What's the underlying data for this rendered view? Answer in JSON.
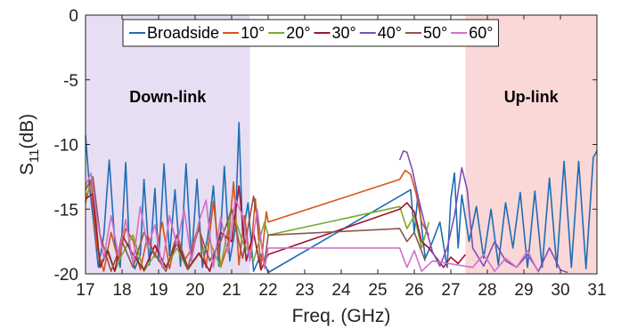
{
  "chart_data": {
    "type": "line",
    "title": "",
    "xlabel": "Freq. (GHz)",
    "ylabel_main": "S",
    "ylabel_sub": "11",
    "ylabel_unit": "(dB)",
    "xlim": [
      17,
      31
    ],
    "ylim": [
      -20,
      0
    ],
    "xticks": [
      17,
      18,
      19,
      20,
      21,
      22,
      23,
      24,
      25,
      26,
      27,
      28,
      29,
      30,
      31
    ],
    "yticks": [
      0,
      -5,
      -10,
      -15,
      -20
    ],
    "grid": false,
    "legend_position": "top",
    "bands": [
      {
        "label": "Down-link",
        "x_start": 17,
        "x_end": 21.5,
        "color": "#e8def3"
      },
      {
        "label": "Up-link",
        "x_start": 27.4,
        "x_end": 31,
        "color": "#fbd8d8"
      }
    ],
    "series": [
      {
        "name": "Broadside",
        "color": "#1f6db3",
        "x": [
          17.0,
          17.1,
          17.2,
          17.35,
          17.5,
          17.65,
          17.8,
          17.95,
          18.1,
          18.2,
          18.35,
          18.5,
          18.6,
          18.75,
          18.9,
          19.0,
          19.15,
          19.3,
          19.45,
          19.6,
          19.75,
          19.9,
          20.05,
          20.2,
          20.35,
          20.5,
          20.65,
          20.8,
          20.95,
          21.1,
          21.2,
          21.3,
          21.45,
          21.6,
          21.8,
          22.0,
          25.9,
          26.0,
          26.1,
          26.3,
          26.5,
          26.7,
          26.9,
          27.0,
          27.1,
          27.2,
          27.3,
          27.5,
          27.7,
          27.9,
          28.1,
          28.3,
          28.5,
          28.7,
          28.9,
          29.1,
          29.3,
          29.5,
          29.7,
          29.9,
          30.1,
          30.3,
          30.5,
          30.7,
          30.9,
          31.0
        ],
        "y": [
          -9.3,
          -13.0,
          -15.5,
          -19.5,
          -17.0,
          -11.2,
          -17.5,
          -19.5,
          -11.4,
          -18.0,
          -19.6,
          -18.5,
          -12.7,
          -19.3,
          -13.4,
          -19.0,
          -11.5,
          -18.6,
          -13.5,
          -19.4,
          -11.5,
          -19.0,
          -12.7,
          -19.5,
          -17.0,
          -13.2,
          -19.4,
          -11.7,
          -19.0,
          -16.5,
          -8.3,
          -17.0,
          -14.5,
          -19.8,
          -18.5,
          -19.9,
          -13.5,
          -16.8,
          -13.9,
          -18.8,
          -17.5,
          -16.0,
          -19.5,
          -14.2,
          -12.2,
          -18.0,
          -13.9,
          -17.5,
          -14.8,
          -18.8,
          -15.0,
          -19.3,
          -14.5,
          -18.0,
          -13.7,
          -19.5,
          -13.6,
          -19.5,
          -12.6,
          -19.5,
          -11.3,
          -19.5,
          -11.3,
          -19.6,
          -11.0,
          -10.5
        ]
      },
      {
        "name": "10°",
        "color": "#d95319",
        "x": [
          17.0,
          17.15,
          17.3,
          17.5,
          17.7,
          17.9,
          18.1,
          18.3,
          18.5,
          18.7,
          18.9,
          19.1,
          19.3,
          19.5,
          19.7,
          19.9,
          20.1,
          20.3,
          20.5,
          20.7,
          20.9,
          21.05,
          21.2,
          21.35,
          21.5,
          21.65,
          21.8,
          21.95,
          22.0,
          25.6,
          25.75,
          25.9,
          26.05,
          26.2,
          26.4
        ],
        "y": [
          -14.5,
          -12.8,
          -17.8,
          -19.8,
          -16.8,
          -19.0,
          -16.5,
          -17.4,
          -19.7,
          -17.0,
          -18.7,
          -16.0,
          -19.6,
          -17.0,
          -19.0,
          -18.1,
          -16.2,
          -19.5,
          -14.4,
          -19.5,
          -17.7,
          -12.9,
          -19.3,
          -15.5,
          -19.0,
          -14.2,
          -19.5,
          -15.2,
          -16.0,
          -12.7,
          -12.0,
          -12.3,
          -13.8,
          -16.0,
          -17.0
        ]
      },
      {
        "name": "20°",
        "color": "#77ac30",
        "x": [
          17.0,
          17.2,
          17.4,
          17.6,
          17.8,
          18.0,
          18.3,
          18.6,
          18.9,
          19.2,
          19.5,
          19.8,
          20.1,
          20.4,
          20.7,
          21.0,
          21.3,
          21.6,
          21.9,
          22.0,
          25.6,
          25.8,
          26.0,
          26.2,
          26.4
        ],
        "y": [
          -14.0,
          -13.0,
          -19.5,
          -18.0,
          -19.8,
          -18.5,
          -17.0,
          -19.8,
          -18.5,
          -19.5,
          -18.0,
          -19.7,
          -18.5,
          -17.5,
          -19.5,
          -15.0,
          -17.5,
          -19.0,
          -16.0,
          -17.0,
          -14.8,
          -16.5,
          -15.5,
          -18.0,
          -16.0
        ]
      },
      {
        "name": "30°",
        "color": "#a2142f",
        "x": [
          17.0,
          17.2,
          17.4,
          17.6,
          17.8,
          18.0,
          18.3,
          18.6,
          18.9,
          19.2,
          19.5,
          19.8,
          20.1,
          20.4,
          20.7,
          21.0,
          21.2,
          21.4,
          21.6,
          21.8,
          22.0,
          25.6,
          25.8,
          26.0,
          26.2,
          26.4,
          26.8,
          27.0,
          27.2,
          27.4
        ],
        "y": [
          -14.2,
          -13.8,
          -19.5,
          -18.2,
          -19.8,
          -17.0,
          -18.5,
          -19.7,
          -17.8,
          -19.5,
          -17.6,
          -19.6,
          -18.4,
          -19.8,
          -16.8,
          -17.5,
          -13.2,
          -19.0,
          -16.8,
          -19.7,
          -18.5,
          -15.0,
          -14.5,
          -15.2,
          -17.5,
          -18.0,
          -19.5,
          -18.7,
          -19.2,
          -18.5
        ]
      },
      {
        "name": "40°",
        "color": "#7e4fb8",
        "x": [
          25.6,
          25.7,
          25.8,
          25.95,
          26.1,
          26.3,
          26.5,
          26.7,
          26.9,
          27.1,
          27.3,
          27.45,
          27.6,
          27.9,
          28.2,
          28.5,
          28.8,
          29.1,
          29.4,
          29.7,
          30.0,
          30.2
        ],
        "y": [
          -11.2,
          -10.5,
          -10.6,
          -12.0,
          -14.0,
          -16.3,
          -18.3,
          -19.4,
          -18.0,
          -15.5,
          -11.8,
          -13.5,
          -18.0,
          -19.4,
          -17.5,
          -19.0,
          -19.5,
          -18.5,
          -19.8,
          -18.0,
          -19.7,
          -19.9
        ]
      },
      {
        "name": "50°",
        "color": "#8c564b",
        "x": [
          17.0,
          17.2,
          17.4,
          17.7,
          18.0,
          18.3,
          18.6,
          18.9,
          19.2,
          19.5,
          19.8,
          20.1,
          20.4,
          20.7,
          21.0,
          21.3,
          21.6,
          21.9,
          22.0,
          25.6,
          25.8,
          26.0,
          26.3
        ],
        "y": [
          -13.5,
          -12.5,
          -17.0,
          -19.8,
          -17.5,
          -19.5,
          -16.8,
          -18.5,
          -19.8,
          -17.0,
          -19.5,
          -16.5,
          -19.0,
          -17.5,
          -15.0,
          -18.8,
          -14.0,
          -19.2,
          -17.0,
          -16.5,
          -17.5,
          -16.8,
          -19.0
        ]
      },
      {
        "name": "60°",
        "color": "#d070c8",
        "x": [
          17.0,
          17.15,
          17.3,
          17.5,
          17.7,
          17.9,
          18.1,
          18.3,
          18.5,
          18.7,
          18.9,
          19.1,
          19.3,
          19.5,
          19.7,
          19.9,
          20.1,
          20.3,
          20.5,
          20.7,
          20.9,
          21.1,
          21.3,
          21.5,
          21.7,
          21.9,
          22.0,
          25.6,
          25.8,
          26.0,
          26.2,
          26.5,
          27.6,
          27.9,
          28.2,
          28.5,
          28.8,
          29.1,
          29.4
        ],
        "y": [
          -13.2,
          -12.2,
          -15.5,
          -18.8,
          -15.5,
          -18.6,
          -15.8,
          -19.2,
          -14.8,
          -18.0,
          -16.2,
          -19.5,
          -15.5,
          -17.8,
          -15.0,
          -19.0,
          -16.0,
          -14.3,
          -19.5,
          -15.6,
          -18.4,
          -14.2,
          -15.5,
          -19.0,
          -15.0,
          -19.6,
          -18.0,
          -18.0,
          -19.5,
          -18.2,
          -19.8,
          -19.0,
          -19.5,
          -18.5,
          -19.8,
          -18.8,
          -19.5,
          -18.2,
          -19.9
        ]
      }
    ]
  }
}
